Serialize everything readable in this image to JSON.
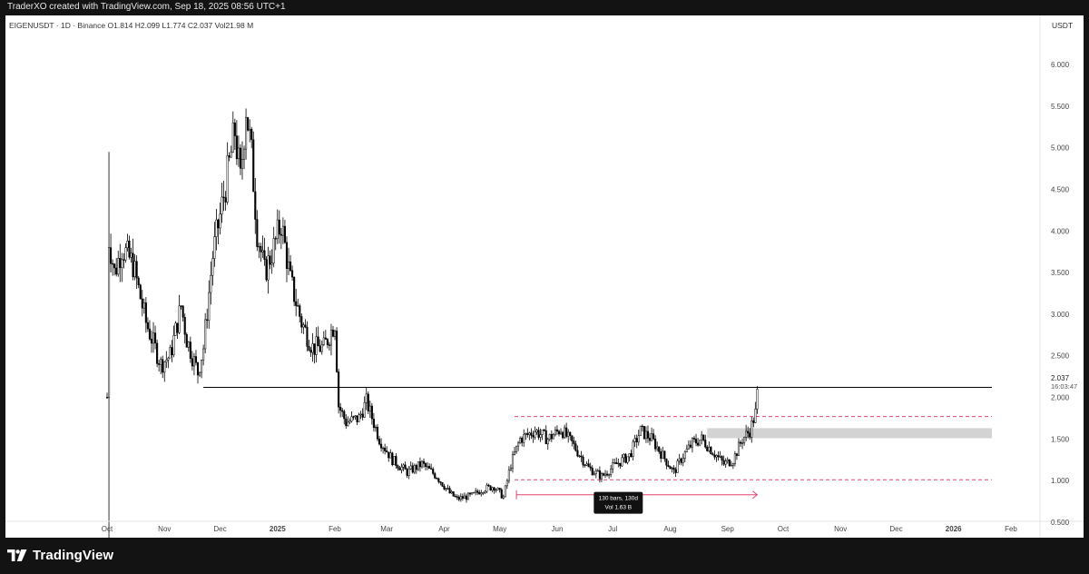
{
  "header": {
    "creator_line": "TraderXO created with TradingView.com, Sep 18, 2025 08:56 UTC+1"
  },
  "footer": {
    "brand_name": "TradingView",
    "logo_icon": "tradingview-logo-icon"
  },
  "colors": {
    "background": "#131313",
    "panel": "#ffffff",
    "candle": "#000000",
    "range_line": "#e0456e",
    "zone_fill": "#d3d3d3",
    "resistance_line": "#000000",
    "text": "#333333"
  },
  "chart_data": {
    "type": "candlestick",
    "symbol_line": "EIGENUSDT · 1D · Binance",
    "ohlc": {
      "open_label": "O",
      "open": "1.814",
      "high_label": "H",
      "high": "2.099",
      "low_label": "L",
      "low": "1.774",
      "close_label": "C",
      "close": "2.037",
      "vol_label": "Vol",
      "vol": "21.98 M"
    },
    "currency_label": "USDT",
    "last_price": "2.037",
    "countdown": "16:03:47",
    "y_axis": {
      "ticks": [
        "0.500",
        "1.000",
        "1.500",
        "2.000",
        "2.500",
        "3.000",
        "3.500",
        "4.000",
        "4.500",
        "5.000",
        "5.500",
        "6.000"
      ],
      "range": [
        0.3,
        6.3
      ]
    },
    "x_axis": {
      "ticks": [
        {
          "label": "Oct",
          "date": "2024-10-01"
        },
        {
          "label": "Nov",
          "date": "2024-11-01"
        },
        {
          "label": "Dec",
          "date": "2024-12-01"
        },
        {
          "label": "2025",
          "date": "2025-01-01"
        },
        {
          "label": "Feb",
          "date": "2025-02-01"
        },
        {
          "label": "Mar",
          "date": "2025-03-01"
        },
        {
          "label": "Apr",
          "date": "2025-04-01"
        },
        {
          "label": "May",
          "date": "2025-05-01"
        },
        {
          "label": "Jun",
          "date": "2025-06-01"
        },
        {
          "label": "Jul",
          "date": "2025-07-01"
        },
        {
          "label": "Aug",
          "date": "2025-08-01"
        },
        {
          "label": "Sep",
          "date": "2025-09-01"
        },
        {
          "label": "Oct",
          "date": "2025-10-01"
        },
        {
          "label": "Nov",
          "date": "2025-11-01"
        },
        {
          "label": "Dec",
          "date": "2025-12-01"
        },
        {
          "label": "2026",
          "date": "2026-01-01"
        },
        {
          "label": "Feb",
          "date": "2026-02-01"
        }
      ]
    },
    "price_path": [
      [
        "2024-10-01",
        2.0
      ],
      [
        "2024-10-02",
        3.9
      ],
      [
        "2024-10-05",
        3.5
      ],
      [
        "2024-10-09",
        3.8
      ],
      [
        "2024-10-15",
        3.6
      ],
      [
        "2024-10-22",
        2.9
      ],
      [
        "2024-10-30",
        2.4
      ],
      [
        "2024-11-04",
        2.5
      ],
      [
        "2024-11-10",
        3.1
      ],
      [
        "2024-11-13",
        2.7
      ],
      [
        "2024-11-19",
        2.3
      ],
      [
        "2024-11-22",
        2.6
      ],
      [
        "2024-11-27",
        3.7
      ],
      [
        "2024-12-02",
        4.3
      ],
      [
        "2024-12-06",
        4.8
      ],
      [
        "2024-12-09",
        5.2
      ],
      [
        "2024-12-12",
        4.6
      ],
      [
        "2024-12-15",
        5.5
      ],
      [
        "2024-12-18",
        4.9
      ],
      [
        "2024-12-21",
        4.0
      ],
      [
        "2024-12-25",
        3.5
      ],
      [
        "2024-12-30",
        3.8
      ],
      [
        "2025-01-03",
        4.1
      ],
      [
        "2025-01-08",
        3.4
      ],
      [
        "2025-01-14",
        2.9
      ],
      [
        "2025-01-20",
        2.6
      ],
      [
        "2025-01-26",
        2.6
      ],
      [
        "2025-02-01",
        2.9
      ],
      [
        "2025-02-03",
        1.9
      ],
      [
        "2025-02-07",
        1.7
      ],
      [
        "2025-02-14",
        1.75
      ],
      [
        "2025-02-18",
        1.95
      ],
      [
        "2025-02-25",
        1.5
      ],
      [
        "2025-03-04",
        1.25
      ],
      [
        "2025-03-12",
        1.1
      ],
      [
        "2025-03-20",
        1.2
      ],
      [
        "2025-03-28",
        1.05
      ],
      [
        "2025-04-04",
        0.85
      ],
      [
        "2025-04-08",
        0.78
      ],
      [
        "2025-04-16",
        0.82
      ],
      [
        "2025-04-22",
        0.9
      ],
      [
        "2025-04-28",
        0.93
      ],
      [
        "2025-05-03",
        0.8
      ],
      [
        "2025-05-07",
        1.2
      ],
      [
        "2025-05-12",
        1.5
      ],
      [
        "2025-05-20",
        1.6
      ],
      [
        "2025-05-27",
        1.5
      ],
      [
        "2025-06-03",
        1.62
      ],
      [
        "2025-06-09",
        1.45
      ],
      [
        "2025-06-18",
        1.15
      ],
      [
        "2025-06-25",
        1.05
      ],
      [
        "2025-07-03",
        1.2
      ],
      [
        "2025-07-10",
        1.3
      ],
      [
        "2025-07-16",
        1.6
      ],
      [
        "2025-07-22",
        1.5
      ],
      [
        "2025-07-28",
        1.3
      ],
      [
        "2025-08-03",
        1.1
      ],
      [
        "2025-08-08",
        1.3
      ],
      [
        "2025-08-13",
        1.45
      ],
      [
        "2025-08-18",
        1.5
      ],
      [
        "2025-08-24",
        1.35
      ],
      [
        "2025-08-30",
        1.2
      ],
      [
        "2025-09-04",
        1.25
      ],
      [
        "2025-09-09",
        1.5
      ],
      [
        "2025-09-13",
        1.6
      ],
      [
        "2025-09-16",
        1.81
      ],
      [
        "2025-09-17",
        2.037
      ]
    ],
    "spike_low": {
      "date": "2024-10-02",
      "low": 0.3,
      "high": 4.95
    },
    "annotations": {
      "resistance_line": {
        "price": 2.12,
        "from": "2024-11-22",
        "to": "2026-02-20"
      },
      "range_top": {
        "price": 1.77,
        "from": "2025-05-09",
        "to": "2026-02-20"
      },
      "range_bottom": {
        "price": 1.01,
        "from": "2025-05-09",
        "to": "2026-02-20"
      },
      "supply_zone": {
        "price_top": 1.63,
        "price_bottom": 1.51,
        "from": "2025-08-21",
        "to": "2026-02-20"
      },
      "measure_line": {
        "price": 0.83,
        "from": "2025-05-10",
        "to": "2025-09-17"
      },
      "measure_label_line1": "130 bars, 130d",
      "measure_label_line2": "Vol 1.63 B",
      "measure_label_date": "2025-07-04",
      "measure_label_price": 0.58
    }
  }
}
